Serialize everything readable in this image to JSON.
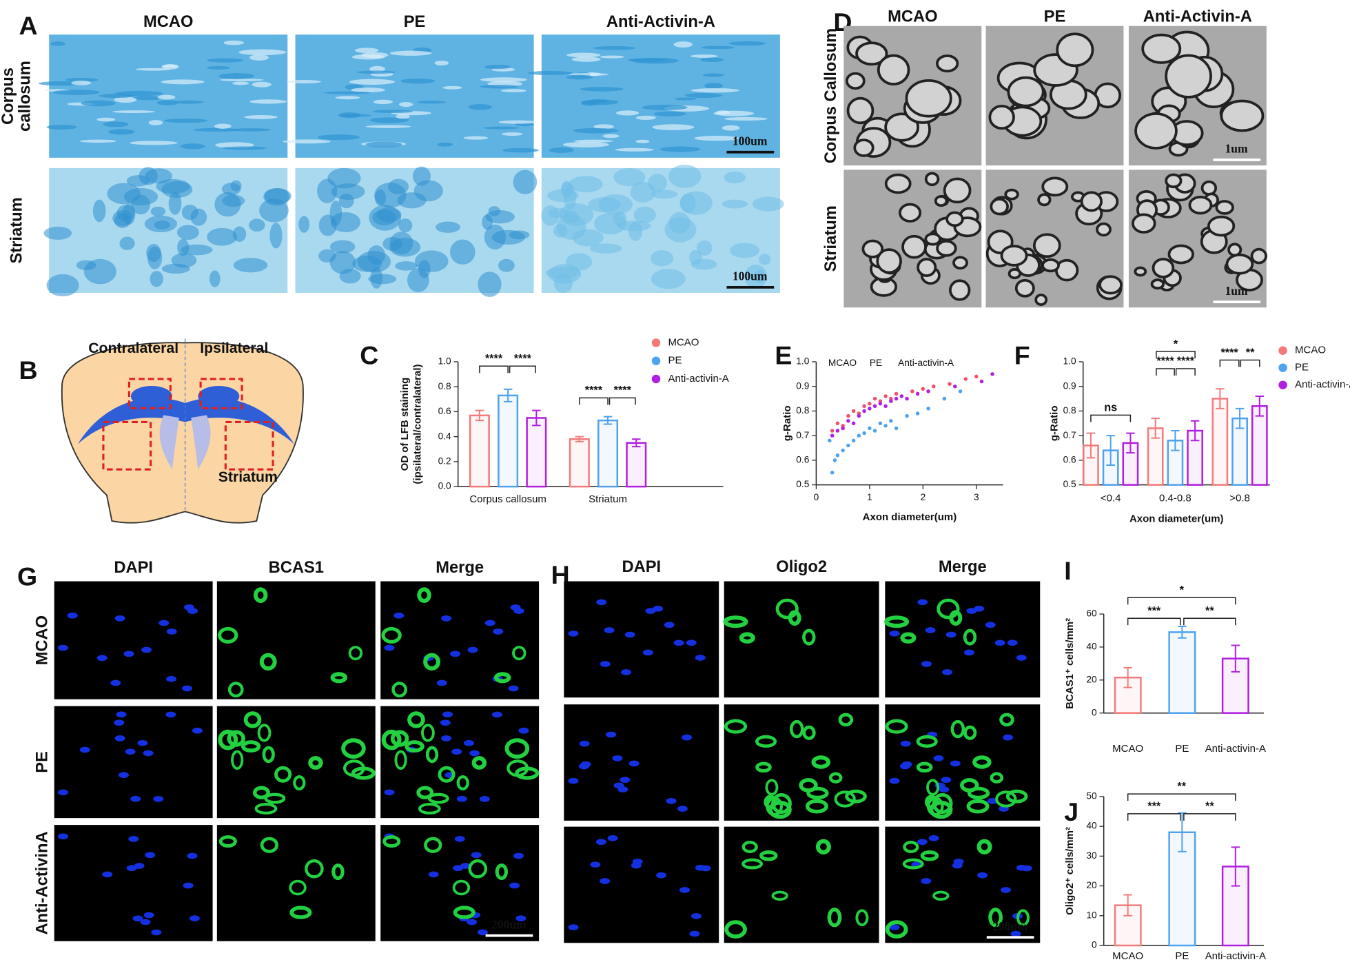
{
  "panels": [
    {
      "letter": "A",
      "columns": [
        "MCAO",
        "PE",
        "Anti-Activin-A"
      ],
      "column_colors": [
        "#111111",
        "#111111",
        "#111111"
      ],
      "rows": [
        [
          "Corpus",
          "callosum"
        ],
        [
          "Striatum"
        ]
      ],
      "scale_bars": [
        "100um",
        "100um"
      ]
    },
    {
      "letter": "D",
      "columns": [
        "MCAO",
        "PE",
        "Anti-Activin-A"
      ],
      "column_colors": [
        "#111111",
        "#111111",
        "#111111"
      ],
      "rows": [
        [
          "Corpus Callosum"
        ],
        [
          "Striatum"
        ]
      ],
      "scale_bars": [
        "1um",
        "1um"
      ]
    },
    {
      "letter": "G",
      "columns": [
        "DAPI",
        "BCAS1",
        "Merge"
      ],
      "column_colors": [
        "#2461d6",
        "#2bb34a",
        "#111111"
      ],
      "rows": [
        [
          "MCAO"
        ],
        [
          "PE"
        ],
        [
          "Anti-ActivinA"
        ]
      ],
      "scale_bars": [
        "200um"
      ]
    },
    {
      "letter": "H",
      "columns": [
        "DAPI",
        "Oligo2",
        "Merge"
      ],
      "column_colors": [
        "#2461d6",
        "#2bb34a",
        "#111111"
      ],
      "rows": [],
      "scale_bars": [
        "200um"
      ]
    }
  ],
  "diagram": {
    "letter": "B",
    "labels": [
      "Contralateral",
      "Ipsilateral",
      "Striatum"
    ]
  },
  "chart_data": [
    {
      "type": "bar",
      "panel": "C",
      "ylabel": [
        "OD of LFB staining",
        "(ipsilateral/contralateral)"
      ],
      "categories": [
        "Corpus callosum",
        "Striatum"
      ],
      "series": [
        {
          "name": "MCAO",
          "color": "#f47a7a",
          "values": [
            0.57,
            0.38
          ],
          "errors": [
            0.04,
            0.02
          ]
        },
        {
          "name": "PE",
          "color": "#4ea2ee",
          "values": [
            0.73,
            0.53
          ],
          "errors": [
            0.05,
            0.03
          ]
        },
        {
          "name": "Anti-activin-A",
          "color": "#b11fe0",
          "values": [
            0.55,
            0.35
          ],
          "errors": [
            0.06,
            0.03
          ]
        }
      ],
      "ylim": [
        0,
        1
      ],
      "yticks": [
        {
          "value": 0,
          "label": "0.0"
        },
        0.2,
        0.4,
        0.6,
        0.8,
        {
          "value": 1,
          "label": "1.0"
        }
      ],
      "significance": [
        "****",
        "****",
        "****",
        "****"
      ]
    },
    {
      "type": "scatter",
      "panel": "E",
      "xlabel": "Axon diameter(um)",
      "ylabel": "g-Ratio",
      "series": [
        {
          "name": "MCAO",
          "color": "#f0506a",
          "x": [
            0.3,
            0.4,
            0.5,
            0.6,
            0.7,
            0.8,
            0.9,
            1.0,
            1.1,
            1.2,
            1.3,
            1.4,
            1.5,
            1.6,
            1.8,
            2.0,
            2.2,
            2.5,
            2.8,
            3.0
          ],
          "values": [
            0.72,
            0.75,
            0.74,
            0.78,
            0.8,
            0.79,
            0.82,
            0.83,
            0.85,
            0.84,
            0.86,
            0.85,
            0.87,
            0.86,
            0.88,
            0.89,
            0.9,
            0.91,
            0.93,
            0.94
          ]
        },
        {
          "name": "PE",
          "color": "#4ea2ee",
          "x": [
            0.25,
            0.3,
            0.35,
            0.4,
            0.5,
            0.6,
            0.7,
            0.8,
            0.9,
            1.0,
            1.1,
            1.2,
            1.3,
            1.4,
            1.5,
            1.7,
            1.9,
            2.1,
            2.4,
            2.7
          ],
          "values": [
            0.68,
            0.55,
            0.6,
            0.62,
            0.64,
            0.66,
            0.68,
            0.7,
            0.71,
            0.73,
            0.72,
            0.75,
            0.74,
            0.76,
            0.73,
            0.78,
            0.79,
            0.81,
            0.85,
            0.88
          ]
        },
        {
          "name": "Anti-activin-A",
          "color": "#b11fe0",
          "x": [
            0.3,
            0.4,
            0.5,
            0.6,
            0.7,
            0.8,
            0.9,
            1.0,
            1.1,
            1.2,
            1.3,
            1.4,
            1.5,
            1.6,
            1.7,
            1.9,
            2.1,
            2.6,
            3.1,
            3.3
          ],
          "values": [
            0.7,
            0.72,
            0.73,
            0.76,
            0.75,
            0.78,
            0.8,
            0.81,
            0.82,
            0.83,
            0.82,
            0.84,
            0.85,
            0.86,
            0.85,
            0.87,
            0.88,
            0.9,
            0.92,
            0.95
          ]
        }
      ],
      "xlim": [
        0,
        3.5
      ],
      "xticks": [
        0,
        1,
        2,
        3
      ],
      "ylim": [
        0.5,
        1
      ],
      "yticks": [
        0.5,
        0.6,
        0.7,
        0.8,
        0.9,
        {
          "value": 1,
          "label": "1.0"
        }
      ]
    },
    {
      "type": "bar",
      "panel": "F",
      "xlabel": "Axon diameter(um)",
      "ylabel": "g-Ratio",
      "categories": [
        "<0.4",
        "0.4-0.8",
        ">0.8"
      ],
      "series": [
        {
          "name": "MCAO",
          "color": "#f47a7a",
          "values": [
            0.66,
            0.73,
            0.85
          ],
          "errors": [
            0.05,
            0.04,
            0.04
          ]
        },
        {
          "name": "PE",
          "color": "#4ea2ee",
          "values": [
            0.64,
            0.68,
            0.77
          ],
          "errors": [
            0.06,
            0.04,
            0.04
          ]
        },
        {
          "name": "Anti-activin-A",
          "color": "#b11fe0",
          "values": [
            0.67,
            0.72,
            0.82
          ],
          "errors": [
            0.04,
            0.04,
            0.04
          ]
        }
      ],
      "ylim": [
        0.5,
        1
      ],
      "yticks": [
        0.5,
        0.6,
        0.7,
        0.8,
        0.9,
        {
          "value": 1,
          "label": "1.0"
        }
      ],
      "significance": [
        "ns",
        "*",
        "****",
        "****",
        "****",
        "**"
      ]
    },
    {
      "type": "bar",
      "panel": "I",
      "ylabel": "BCAS1⁺ cells/mm²",
      "categories": [
        "MCAO",
        "PE",
        "Anti-activin-A"
      ],
      "colors": [
        "#f47a7a",
        "#4ea2ee",
        "#b11fe0"
      ],
      "values": [
        21.5,
        49,
        33
      ],
      "errors": [
        6,
        3.5,
        8
      ],
      "ylim": [
        0,
        60
      ],
      "yticks": [
        0,
        20,
        40,
        60
      ],
      "significance": [
        "*",
        "***",
        "**"
      ]
    },
    {
      "type": "bar",
      "panel": "J",
      "ylabel": "Oligo2⁺ cells/mm²",
      "categories": [
        "MCAO",
        "PE",
        "Anti-activin-A"
      ],
      "colors": [
        "#f47a7a",
        "#4ea2ee",
        "#b11fe0"
      ],
      "values": [
        13.5,
        38,
        26.5
      ],
      "errors": [
        3.5,
        6.5,
        6.5
      ],
      "ylim": [
        0,
        50
      ],
      "yticks": [
        0,
        10,
        20,
        30,
        40,
        50
      ],
      "significance": [
        "**",
        "***",
        "**"
      ]
    }
  ]
}
